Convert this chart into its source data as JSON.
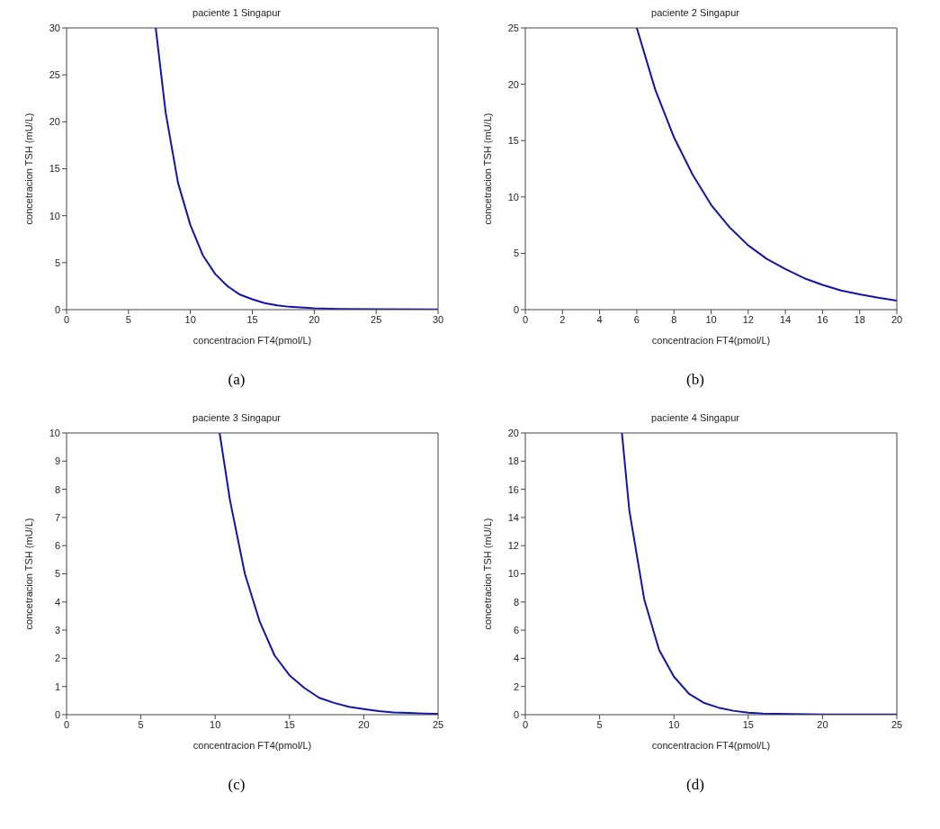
{
  "chart_data": [
    {
      "type": "line",
      "title": "paciente 1 Singapur",
      "xlabel": "concentracion FT4(pmol/L)",
      "ylabel": "concetracion TSH (mU/L)",
      "x": [
        7.2,
        8,
        9,
        10,
        11,
        12,
        13,
        14,
        15,
        16,
        17,
        18,
        20,
        22,
        25,
        30
      ],
      "series": [
        {
          "color": "#1414a8",
          "values": [
            30,
            21,
            13.5,
            9,
            5.8,
            3.8,
            2.5,
            1.6,
            1.1,
            0.7,
            0.45,
            0.3,
            0.15,
            0.08,
            0.05,
            0.03
          ]
        }
      ],
      "xlim": [
        0,
        30
      ],
      "ylim": [
        0,
        30
      ],
      "xticks": [
        0,
        5,
        10,
        15,
        20,
        25,
        30
      ],
      "yticks": [
        0,
        5,
        10,
        15,
        20,
        25,
        30
      ],
      "annotations": [
        "(a)"
      ]
    },
    {
      "type": "line",
      "title": "paciente 2 Singapur",
      "xlabel": "concentracion FT4(pmol/L)",
      "ylabel": "concetracion TSH (mU/L)",
      "x": [
        6,
        7,
        8,
        9,
        10,
        11,
        12,
        13,
        14,
        15,
        16,
        17,
        18,
        19,
        20
      ],
      "series": [
        {
          "color": "#1414a8",
          "values": [
            25,
            19.5,
            15.3,
            12,
            9.3,
            7.3,
            5.7,
            4.5,
            3.6,
            2.8,
            2.2,
            1.7,
            1.35,
            1.05,
            0.8
          ]
        }
      ],
      "xlim": [
        0,
        20
      ],
      "ylim": [
        0,
        25
      ],
      "xticks": [
        0,
        2,
        4,
        6,
        8,
        10,
        12,
        14,
        16,
        18,
        20
      ],
      "yticks": [
        0,
        5,
        10,
        15,
        20,
        25
      ],
      "annotations": [
        "(b)"
      ]
    },
    {
      "type": "line",
      "title": "paciente 3 Singapur",
      "xlabel": "concentracion FT4(pmol/L)",
      "ylabel": "concetracion TSH (mU/L)",
      "x": [
        10.3,
        11,
        12,
        13,
        14,
        15,
        16,
        17,
        18,
        19,
        20,
        21,
        22,
        23,
        24,
        25
      ],
      "series": [
        {
          "color": "#1414a8",
          "values": [
            10,
            7.6,
            5,
            3.3,
            2.1,
            1.4,
            0.95,
            0.6,
            0.42,
            0.28,
            0.2,
            0.13,
            0.08,
            0.06,
            0.04,
            0.03
          ]
        }
      ],
      "xlim": [
        0,
        25
      ],
      "ylim": [
        0,
        10
      ],
      "xticks": [
        0,
        5,
        10,
        15,
        20,
        25
      ],
      "yticks": [
        0,
        1,
        2,
        3,
        4,
        5,
        6,
        7,
        8,
        9,
        10
      ],
      "annotations": [
        "(c)"
      ]
    },
    {
      "type": "line",
      "title": "paciente 4 Singapur",
      "xlabel": "concentracion FT4(pmol/L)",
      "ylabel": "concetracion TSH (mU/L)",
      "x": [
        6.5,
        7,
        8,
        9,
        10,
        11,
        12,
        13,
        14,
        15,
        16,
        18,
        20,
        25
      ],
      "series": [
        {
          "color": "#1414a8",
          "values": [
            20,
            14.5,
            8.2,
            4.6,
            2.7,
            1.5,
            0.85,
            0.5,
            0.28,
            0.15,
            0.08,
            0.04,
            0.02,
            0.02
          ]
        }
      ],
      "xlim": [
        0,
        25
      ],
      "ylim": [
        0,
        20
      ],
      "xticks": [
        0,
        5,
        10,
        15,
        20,
        25
      ],
      "yticks": [
        0,
        2,
        4,
        6,
        8,
        10,
        12,
        14,
        16,
        18,
        20
      ],
      "annotations": [
        "(d)"
      ]
    }
  ]
}
